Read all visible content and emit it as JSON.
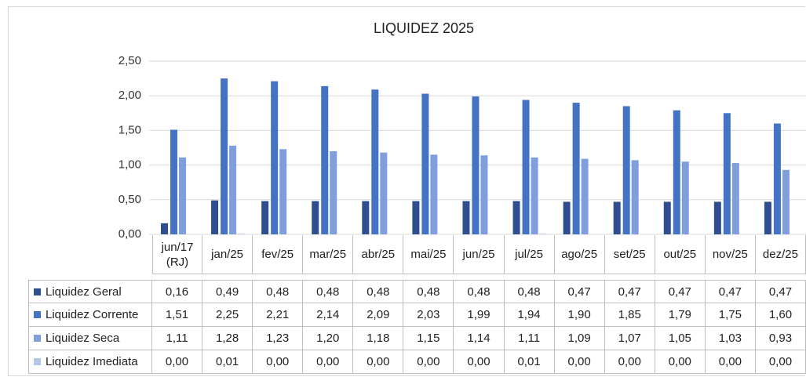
{
  "chart_data": {
    "type": "bar",
    "title": "LIQUIDEZ 2025",
    "categories": [
      "jun/17 (RJ)",
      "jan/25",
      "fev/25",
      "mar/25",
      "abr/25",
      "mai/25",
      "jun/25",
      "jul/25",
      "ago/25",
      "set/25",
      "out/25",
      "nov/25",
      "dez/25"
    ],
    "series": [
      {
        "name": "Liquidez Geral",
        "color": "#2e4f8f",
        "values": [
          0.16,
          0.49,
          0.48,
          0.48,
          0.48,
          0.48,
          0.48,
          0.48,
          0.47,
          0.47,
          0.47,
          0.47,
          0.47
        ],
        "value_labels": [
          "0,16",
          "0,49",
          "0,48",
          "0,48",
          "0,48",
          "0,48",
          "0,48",
          "0,48",
          "0,47",
          "0,47",
          "0,47",
          "0,47",
          "0,47"
        ]
      },
      {
        "name": "Liquidez Corrente",
        "color": "#4472c4",
        "values": [
          1.51,
          2.25,
          2.21,
          2.14,
          2.09,
          2.03,
          1.99,
          1.94,
          1.9,
          1.85,
          1.79,
          1.75,
          1.6
        ],
        "value_labels": [
          "1,51",
          "2,25",
          "2,21",
          "2,14",
          "2,09",
          "2,03",
          "1,99",
          "1,94",
          "1,90",
          "1,85",
          "1,79",
          "1,75",
          "1,60"
        ]
      },
      {
        "name": "Liquidez Seca",
        "color": "#7f9fdc",
        "values": [
          1.11,
          1.28,
          1.23,
          1.2,
          1.18,
          1.15,
          1.14,
          1.11,
          1.09,
          1.07,
          1.05,
          1.03,
          0.93
        ],
        "value_labels": [
          "1,11",
          "1,28",
          "1,23",
          "1,20",
          "1,18",
          "1,15",
          "1,14",
          "1,11",
          "1,09",
          "1,07",
          "1,05",
          "1,03",
          "0,93"
        ]
      },
      {
        "name": "Liquidez Imediata",
        "color": "#b4c5ea",
        "values": [
          0.0,
          0.01,
          0.0,
          0.0,
          0.0,
          0.0,
          0.0,
          0.01,
          0.0,
          0.0,
          0.0,
          0.0,
          0.0
        ],
        "value_labels": [
          "0,00",
          "0,01",
          "0,00",
          "0,00",
          "0,00",
          "0,00",
          "0,00",
          "0,01",
          "0,00",
          "0,00",
          "0,00",
          "0,00",
          "0,00"
        ]
      }
    ],
    "ylim": [
      0,
      2.5
    ],
    "yticks": [
      {
        "value": 0,
        "label": "0,00"
      },
      {
        "value": 0.5,
        "label": "0,50"
      },
      {
        "value": 1,
        "label": "1,00"
      },
      {
        "value": 1.5,
        "label": "1,50"
      },
      {
        "value": 2,
        "label": "2,00"
      },
      {
        "value": 2.5,
        "label": "2,50"
      }
    ],
    "grid": true
  }
}
